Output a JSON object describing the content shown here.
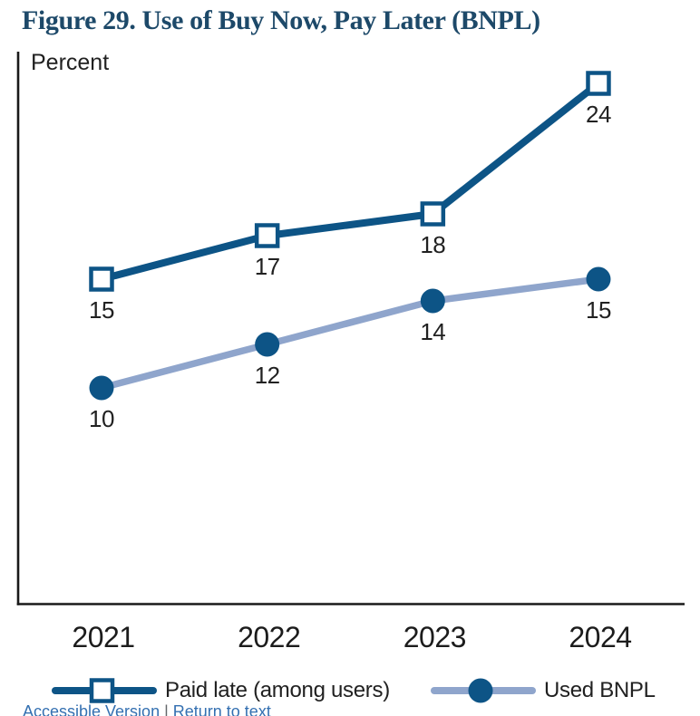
{
  "figure": {
    "title": "Figure 29. Use of Buy Now, Pay Later (BNPL)",
    "y_axis_unit_label": "Percent",
    "footer": {
      "accessible_link": "Accessible Version",
      "separator": "|",
      "return_link": "Return to text"
    }
  },
  "colors": {
    "dark_blue": "#0d5486",
    "light_blue": "#8fa5cc",
    "title_navy": "#1d4969",
    "axis_black": "#1a1a1a",
    "label_text": "#212121",
    "link_blue": "#3470b1"
  },
  "chart_data": {
    "type": "line",
    "categories": [
      "2021",
      "2022",
      "2023",
      "2024"
    ],
    "series": [
      {
        "name": "Paid late (among users)",
        "values": [
          15,
          17,
          18,
          24
        ],
        "color": "#0d5486",
        "marker": "square",
        "marker_fill": "#ffffff",
        "marker_stroke": "#0d5486"
      },
      {
        "name": "Used BNPL",
        "values": [
          10,
          12,
          14,
          15
        ],
        "color": "#8fa5cc",
        "marker": "circle",
        "marker_fill": "#0d5486"
      }
    ],
    "title": "Figure 29. Use of Buy Now, Pay Later (BNPL)",
    "xlabel": "",
    "ylabel": "Percent",
    "ylim": [
      0,
      25.5
    ],
    "grid": false,
    "data_labels": true,
    "legend_position": "bottom"
  }
}
